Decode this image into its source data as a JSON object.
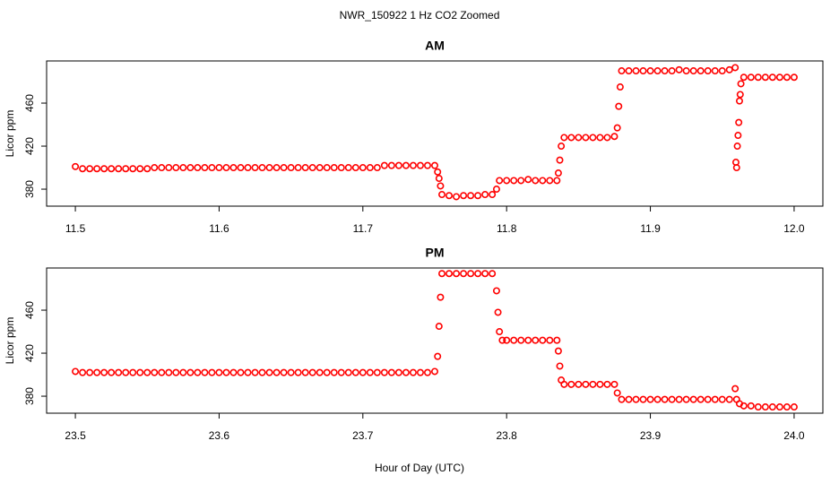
{
  "title": "NWR_150922  1 Hz CO2 Zoomed",
  "xlabel": "Hour of Day (UTC)",
  "chart_data": [
    {
      "type": "scatter",
      "title": "AM",
      "ylabel": "Licor ppm",
      "color": "#ff0000",
      "xlim": [
        11.48,
        12.02
      ],
      "ylim": [
        364.2,
        499.2
      ],
      "xticks": [
        11.5,
        11.6,
        11.7,
        11.8,
        11.9,
        {
          "value": 12,
          "label": "12.0"
        }
      ],
      "yticks": [
        380,
        420,
        460
      ],
      "x": [
        11.5,
        11.505,
        11.51,
        11.515,
        11.52,
        11.525,
        11.53,
        11.535,
        11.54,
        11.545,
        11.55,
        11.555,
        11.56,
        11.565,
        11.57,
        11.575,
        11.58,
        11.585,
        11.59,
        11.595,
        11.6,
        11.605,
        11.61,
        11.615,
        11.62,
        11.625,
        11.63,
        11.635,
        11.64,
        11.645,
        11.65,
        11.655,
        11.66,
        11.665,
        11.67,
        11.675,
        11.68,
        11.685,
        11.69,
        11.695,
        11.7,
        11.705,
        11.71,
        11.715,
        11.72,
        11.725,
        11.73,
        11.735,
        11.74,
        11.745,
        11.75,
        11.752,
        11.753,
        11.754,
        11.755,
        11.76,
        11.765,
        11.77,
        11.775,
        11.78,
        11.785,
        11.79,
        11.793,
        11.795,
        11.8,
        11.805,
        11.81,
        11.815,
        11.82,
        11.825,
        11.83,
        11.835,
        11.836,
        11.837,
        11.838,
        11.84,
        11.845,
        11.85,
        11.855,
        11.86,
        11.865,
        11.87,
        11.875,
        11.877,
        11.878,
        11.879,
        11.88,
        11.885,
        11.89,
        11.895,
        11.9,
        11.905,
        11.91,
        11.915,
        11.92,
        11.925,
        11.93,
        11.935,
        11.94,
        11.945,
        11.95,
        11.955,
        11.959,
        11.9595,
        11.96,
        11.9605,
        11.961,
        11.9615,
        11.962,
        11.9625,
        11.963,
        11.965,
        11.97,
        11.975,
        11.98,
        11.985,
        11.99,
        11.995,
        12.0
      ],
      "values": [
        401,
        399,
        399,
        399,
        399,
        399,
        399,
        399,
        399,
        399,
        399,
        400,
        400,
        400,
        400,
        400,
        400,
        400,
        400,
        400,
        400,
        400,
        400,
        400,
        400,
        400,
        400,
        400,
        400,
        400,
        400,
        400,
        400,
        400,
        400,
        400,
        400,
        400,
        400,
        400,
        400,
        400,
        400,
        402,
        402,
        402,
        402,
        402,
        402,
        402,
        402,
        396,
        390,
        383,
        375,
        374,
        373,
        374,
        374,
        374,
        375,
        375,
        380,
        388,
        388,
        388,
        388,
        389,
        388,
        388,
        388,
        388,
        395,
        407,
        420,
        428,
        428,
        428,
        428,
        428,
        428,
        428,
        429,
        437,
        457,
        475,
        490,
        490,
        490,
        490,
        490,
        490,
        490,
        490,
        491,
        490,
        490,
        490,
        490,
        490,
        490,
        491,
        493,
        405,
        400,
        420,
        430,
        442,
        462,
        468,
        478,
        484,
        484,
        484,
        484,
        484,
        484,
        484,
        484
      ]
    },
    {
      "type": "scatter",
      "title": "PM",
      "ylabel": "Licor ppm",
      "color": "#ff0000",
      "xlim": [
        23.48,
        24.02
      ],
      "ylim": [
        364.2,
        499.2
      ],
      "xticks": [
        23.5,
        23.6,
        23.7,
        23.8,
        23.9,
        {
          "value": 24,
          "label": "24.0"
        }
      ],
      "yticks": [
        380,
        420,
        460
      ],
      "x": [
        23.5,
        23.505,
        23.51,
        23.515,
        23.52,
        23.525,
        23.53,
        23.535,
        23.54,
        23.545,
        23.55,
        23.555,
        23.56,
        23.565,
        23.57,
        23.575,
        23.58,
        23.585,
        23.59,
        23.595,
        23.6,
        23.605,
        23.61,
        23.615,
        23.62,
        23.625,
        23.63,
        23.635,
        23.64,
        23.645,
        23.65,
        23.655,
        23.66,
        23.665,
        23.67,
        23.675,
        23.68,
        23.685,
        23.69,
        23.695,
        23.7,
        23.705,
        23.71,
        23.715,
        23.72,
        23.725,
        23.73,
        23.735,
        23.74,
        23.745,
        23.75,
        23.752,
        23.753,
        23.754,
        23.755,
        23.76,
        23.765,
        23.77,
        23.775,
        23.78,
        23.785,
        23.79,
        23.793,
        23.794,
        23.795,
        23.797,
        23.8,
        23.805,
        23.81,
        23.815,
        23.82,
        23.825,
        23.83,
        23.835,
        23.836,
        23.837,
        23.838,
        23.84,
        23.845,
        23.85,
        23.855,
        23.86,
        23.865,
        23.87,
        23.875,
        23.877,
        23.88,
        23.885,
        23.89,
        23.895,
        23.9,
        23.905,
        23.91,
        23.915,
        23.92,
        23.925,
        23.93,
        23.935,
        23.94,
        23.945,
        23.95,
        23.955,
        23.959,
        23.96,
        23.962,
        23.965,
        23.97,
        23.975,
        23.98,
        23.985,
        23.99,
        23.995,
        24.0
      ],
      "values": [
        403,
        402,
        402,
        402,
        402,
        402,
        402,
        402,
        402,
        402,
        402,
        402,
        402,
        402,
        402,
        402,
        402,
        402,
        402,
        402,
        402,
        402,
        402,
        402,
        402,
        402,
        402,
        402,
        402,
        402,
        402,
        402,
        402,
        402,
        402,
        402,
        402,
        402,
        402,
        402,
        402,
        402,
        402,
        402,
        402,
        402,
        402,
        402,
        402,
        402,
        403,
        417,
        445,
        472,
        494,
        494,
        494,
        494,
        494,
        494,
        494,
        494,
        478,
        458,
        440,
        432,
        432,
        432,
        432,
        432,
        432,
        432,
        432,
        432,
        422,
        408,
        395,
        391,
        391,
        391,
        391,
        391,
        391,
        391,
        391,
        383,
        377,
        377,
        377,
        377,
        377,
        377,
        377,
        377,
        377,
        377,
        377,
        377,
        377,
        377,
        377,
        377,
        387,
        377,
        373,
        371,
        371,
        370,
        370,
        370,
        370,
        370,
        370
      ]
    }
  ]
}
